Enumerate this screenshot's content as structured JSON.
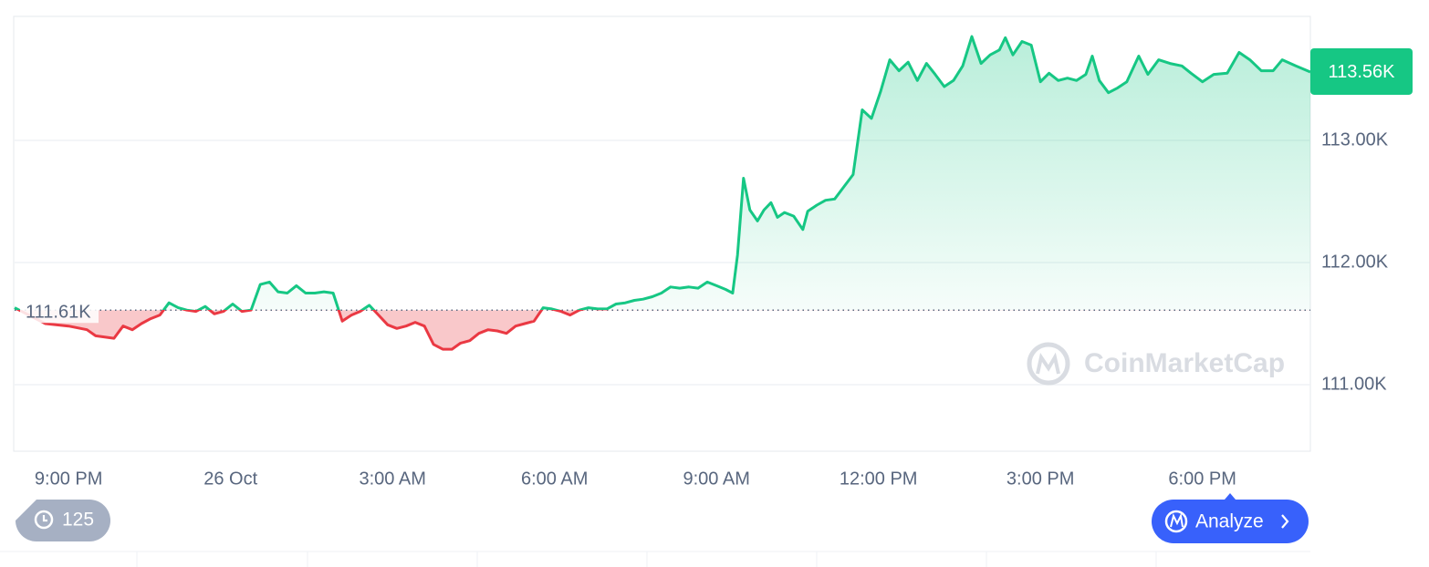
{
  "chart_data": {
    "type": "line",
    "x": [
      20.0,
      20.57,
      21.0,
      21.34,
      21.5,
      21.67,
      21.84,
      22.01,
      22.18,
      22.35,
      22.52,
      22.69,
      22.86,
      23.03,
      23.19,
      23.36,
      23.53,
      23.7,
      23.87,
      24.04,
      24.21,
      24.38,
      24.55,
      24.72,
      24.88,
      25.05,
      25.22,
      25.39,
      25.56,
      25.73,
      25.9,
      26.07,
      26.24,
      26.4,
      26.57,
      26.74,
      26.91,
      27.08,
      27.25,
      27.42,
      27.59,
      27.76,
      27.93,
      28.1,
      28.26,
      28.43,
      28.6,
      28.77,
      28.94,
      29.11,
      29.28,
      29.45,
      29.62,
      29.79,
      29.95,
      30.12,
      30.29,
      30.46,
      30.63,
      30.8,
      30.97,
      31.14,
      31.31,
      31.48,
      31.64,
      31.81,
      31.98,
      32.15,
      32.32,
      32.49,
      32.66,
      32.83,
      33.0,
      33.17,
      33.3,
      33.39,
      33.5,
      33.62,
      33.76,
      33.88,
      34.01,
      34.13,
      34.26,
      34.43,
      34.6,
      34.69,
      34.86,
      35.02,
      35.19,
      35.36,
      35.53,
      35.7,
      35.87,
      36.04,
      36.21,
      36.38,
      36.55,
      36.72,
      36.89,
      37.05,
      37.22,
      37.39,
      37.56,
      37.73,
      37.9,
      38.07,
      38.24,
      38.35,
      38.49,
      38.66,
      38.83,
      39.0,
      39.16,
      39.33,
      39.5,
      39.67,
      39.84,
      39.96,
      40.09,
      40.26,
      40.43,
      40.6,
      40.82,
      40.99,
      41.19,
      41.4,
      41.62,
      41.79,
      42.0,
      42.21,
      42.46,
      42.68,
      42.88,
      43.09,
      43.31,
      43.48,
      43.73,
      44.0
    ],
    "values": [
      111630,
      111500,
      111480,
      111450,
      111400,
      111390,
      111380,
      111480,
      111450,
      111500,
      111540,
      111570,
      111670,
      111630,
      111610,
      111600,
      111640,
      111580,
      111600,
      111660,
      111600,
      111610,
      111820,
      111840,
      111760,
      111750,
      111810,
      111750,
      111750,
      111760,
      111750,
      111520,
      111570,
      111600,
      111650,
      111570,
      111490,
      111460,
      111480,
      111510,
      111480,
      111330,
      111290,
      111290,
      111340,
      111360,
      111420,
      111450,
      111440,
      111420,
      111480,
      111500,
      111520,
      111630,
      111620,
      111600,
      111570,
      111610,
      111630,
      111620,
      111620,
      111660,
      111670,
      111690,
      111700,
      111720,
      111750,
      111800,
      111790,
      111800,
      111790,
      111840,
      111810,
      111780,
      111750,
      112060,
      112690,
      112430,
      112340,
      112430,
      112490,
      112370,
      112410,
      112380,
      112270,
      112420,
      112470,
      112510,
      112520,
      112620,
      112720,
      113250,
      113180,
      113400,
      113660,
      113570,
      113640,
      113490,
      113630,
      113540,
      113440,
      113490,
      113610,
      113850,
      113630,
      113700,
      113740,
      113840,
      113700,
      113810,
      113780,
      113480,
      113550,
      113490,
      113510,
      113490,
      113540,
      113690,
      113490,
      113390,
      113430,
      113480,
      113690,
      113540,
      113660,
      113630,
      113610,
      113550,
      113480,
      113540,
      113550,
      113720,
      113660,
      113570,
      113570,
      113660,
      113610,
      113560
    ],
    "color": "#16c784",
    "down_color": "#ea3943",
    "baseline": {
      "value": 111610,
      "label": "111.61K"
    },
    "last_price": {
      "value": 113560,
      "label": "113.56K"
    },
    "xlim": [
      20,
      44
    ],
    "xticks": [
      {
        "value": 21,
        "label": "9:00 PM"
      },
      {
        "value": 24,
        "label": "26 Oct"
      },
      {
        "value": 27,
        "label": "3:00 AM"
      },
      {
        "value": 30,
        "label": "6:00 AM"
      },
      {
        "value": 33,
        "label": "9:00 AM"
      },
      {
        "value": 36,
        "label": "12:00 PM"
      },
      {
        "value": 39,
        "label": "3:00 PM"
      },
      {
        "value": 42,
        "label": "6:00 PM"
      }
    ],
    "ylim": [
      110455,
      114015
    ],
    "yticks": [
      {
        "value": 111000,
        "label": "111.00K"
      },
      {
        "value": 112000,
        "label": "112.00K"
      },
      {
        "value": 113000,
        "label": "113.00K"
      }
    ],
    "grid": true
  },
  "watermark": "CoinMarketCap",
  "history_badge": "125",
  "analyze_button": "Analyze"
}
